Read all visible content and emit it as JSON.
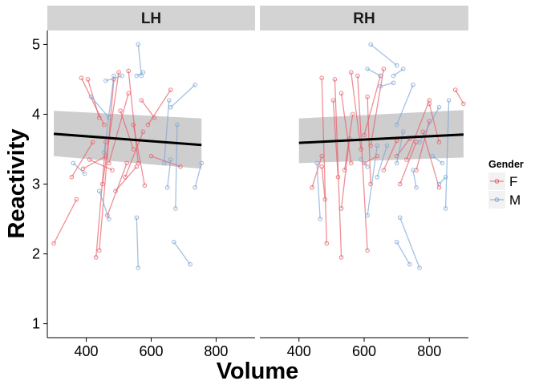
{
  "chart_data": {
    "type": "line",
    "facets": [
      "LH",
      "RH"
    ],
    "xlabel": "Volume",
    "ylabel": "Reactivity",
    "xlim": [
      280,
      920
    ],
    "ylim": [
      0.8,
      5.2
    ],
    "xticks": [
      400,
      600,
      800
    ],
    "yticks": [
      1,
      2,
      3,
      4,
      5
    ],
    "grid": false,
    "legend": {
      "title": "Gender",
      "position": "right",
      "entries": [
        "F",
        "M"
      ]
    },
    "colors": {
      "F": "#e8606b",
      "M": "#7ea6d6",
      "trend": "#000000",
      "ci": "#bdbdbd",
      "strip": "#d3d3d3"
    },
    "trend": [
      {
        "facet": "LH",
        "x": [
          300,
          755
        ],
        "y": [
          3.72,
          3.56
        ],
        "ci_lower": [
          3.4,
          3.22
        ],
        "ci_upper": [
          4.05,
          3.94
        ]
      },
      {
        "facet": "RH",
        "x": [
          400,
          905
        ],
        "y": [
          3.59,
          3.71
        ],
        "ci_lower": [
          3.3,
          3.38
        ],
        "ci_upper": [
          3.94,
          4.06
        ]
      }
    ],
    "segments": [
      {
        "facet": "LH",
        "gender": "F",
        "x1": 300,
        "y1": 2.15,
        "x2": 370,
        "y2": 2.78
      },
      {
        "facet": "LH",
        "gender": "F",
        "x1": 355,
        "y1": 3.1,
        "x2": 420,
        "y2": 3.6
      },
      {
        "facet": "LH",
        "gender": "F",
        "x1": 385,
        "y1": 4.52,
        "x2": 455,
        "y2": 3.85
      },
      {
        "facet": "LH",
        "gender": "F",
        "x1": 390,
        "y1": 3.22,
        "x2": 460,
        "y2": 3.4
      },
      {
        "facet": "LH",
        "gender": "F",
        "x1": 405,
        "y1": 4.5,
        "x2": 440,
        "y2": 3.95
      },
      {
        "facet": "LH",
        "gender": "F",
        "x1": 410,
        "y1": 3.35,
        "x2": 480,
        "y2": 3.2
      },
      {
        "facet": "LH",
        "gender": "F",
        "x1": 430,
        "y1": 1.95,
        "x2": 460,
        "y2": 3.6
      },
      {
        "facet": "LH",
        "gender": "F",
        "x1": 440,
        "y1": 2.05,
        "x2": 485,
        "y2": 4.5
      },
      {
        "facet": "LH",
        "gender": "F",
        "x1": 450,
        "y1": 3.0,
        "x2": 500,
        "y2": 4.6
      },
      {
        "facet": "LH",
        "gender": "F",
        "x1": 465,
        "y1": 2.55,
        "x2": 525,
        "y2": 3.3
      },
      {
        "facet": "LH",
        "gender": "F",
        "x1": 470,
        "y1": 3.3,
        "x2": 530,
        "y2": 4.3
      },
      {
        "facet": "LH",
        "gender": "F",
        "x1": 490,
        "y1": 2.9,
        "x2": 555,
        "y2": 3.25
      },
      {
        "facet": "LH",
        "gender": "F",
        "x1": 505,
        "y1": 4.05,
        "x2": 545,
        "y2": 3.5
      },
      {
        "facet": "LH",
        "gender": "F",
        "x1": 520,
        "y1": 3.1,
        "x2": 575,
        "y2": 3.75
      },
      {
        "facet": "LH",
        "gender": "F",
        "x1": 530,
        "y1": 4.62,
        "x2": 560,
        "y2": 3.3
      },
      {
        "facet": "LH",
        "gender": "F",
        "x1": 545,
        "y1": 3.85,
        "x2": 580,
        "y2": 2.98
      },
      {
        "facet": "LH",
        "gender": "F",
        "x1": 570,
        "y1": 4.2,
        "x2": 610,
        "y2": 3.95
      },
      {
        "facet": "LH",
        "gender": "F",
        "x1": 590,
        "y1": 3.85,
        "x2": 660,
        "y2": 4.35
      },
      {
        "facet": "LH",
        "gender": "F",
        "x1": 600,
        "y1": 3.4,
        "x2": 690,
        "y2": 3.25
      },
      {
        "facet": "LH",
        "gender": "M",
        "x1": 360,
        "y1": 3.3,
        "x2": 395,
        "y2": 3.15
      },
      {
        "facet": "LH",
        "gender": "M",
        "x1": 415,
        "y1": 4.25,
        "x2": 470,
        "y2": 3.95
      },
      {
        "facet": "LH",
        "gender": "M",
        "x1": 455,
        "y1": 3.45,
        "x2": 485,
        "y2": 4.55
      },
      {
        "facet": "LH",
        "gender": "M",
        "x1": 460,
        "y1": 4.48,
        "x2": 510,
        "y2": 4.55
      },
      {
        "facet": "LH",
        "gender": "M",
        "x1": 440,
        "y1": 2.9,
        "x2": 470,
        "y2": 2.5
      },
      {
        "facet": "LH",
        "gender": "M",
        "x1": 555,
        "y1": 4.55,
        "x2": 575,
        "y2": 4.6
      },
      {
        "facet": "LH",
        "gender": "M",
        "x1": 555,
        "y1": 2.52,
        "x2": 560,
        "y2": 1.8
      },
      {
        "facet": "LH",
        "gender": "M",
        "x1": 560,
        "y1": 5.0,
        "x2": 570,
        "y2": 4.55
      },
      {
        "facet": "LH",
        "gender": "M",
        "x1": 640,
        "y1": 3.3,
        "x2": 655,
        "y2": 4.2
      },
      {
        "facet": "LH",
        "gender": "M",
        "x1": 650,
        "y1": 2.95,
        "x2": 660,
        "y2": 3.35
      },
      {
        "facet": "LH",
        "gender": "M",
        "x1": 670,
        "y1": 2.17,
        "x2": 720,
        "y2": 1.85
      },
      {
        "facet": "LH",
        "gender": "M",
        "x1": 675,
        "y1": 2.65,
        "x2": 680,
        "y2": 3.85
      },
      {
        "facet": "LH",
        "gender": "M",
        "x1": 660,
        "y1": 4.1,
        "x2": 735,
        "y2": 4.42
      },
      {
        "facet": "LH",
        "gender": "M",
        "x1": 735,
        "y1": 2.95,
        "x2": 755,
        "y2": 3.3
      },
      {
        "facet": "RH",
        "gender": "F",
        "x1": 440,
        "y1": 2.95,
        "x2": 470,
        "y2": 3.4
      },
      {
        "facet": "RH",
        "gender": "F",
        "x1": 470,
        "y1": 4.52,
        "x2": 485,
        "y2": 2.15
      },
      {
        "facet": "RH",
        "gender": "F",
        "x1": 470,
        "y1": 3.25,
        "x2": 480,
        "y2": 2.78
      },
      {
        "facet": "RH",
        "gender": "F",
        "x1": 505,
        "y1": 4.2,
        "x2": 520,
        "y2": 3.1
      },
      {
        "facet": "RH",
        "gender": "F",
        "x1": 510,
        "y1": 4.5,
        "x2": 530,
        "y2": 1.95
      },
      {
        "facet": "RH",
        "gender": "F",
        "x1": 530,
        "y1": 4.3,
        "x2": 560,
        "y2": 3.3
      },
      {
        "facet": "RH",
        "gender": "F",
        "x1": 530,
        "y1": 2.65,
        "x2": 555,
        "y2": 3.65
      },
      {
        "facet": "RH",
        "gender": "F",
        "x1": 540,
        "y1": 3.2,
        "x2": 565,
        "y2": 4.0
      },
      {
        "facet": "RH",
        "gender": "F",
        "x1": 560,
        "y1": 4.6,
        "x2": 590,
        "y2": 3.5
      },
      {
        "facet": "RH",
        "gender": "F",
        "x1": 580,
        "y1": 4.55,
        "x2": 610,
        "y2": 2.05
      },
      {
        "facet": "RH",
        "gender": "F",
        "x1": 600,
        "y1": 3.7,
        "x2": 650,
        "y2": 4.55
      },
      {
        "facet": "RH",
        "gender": "F",
        "x1": 600,
        "y1": 3.3,
        "x2": 640,
        "y2": 3.4
      },
      {
        "facet": "RH",
        "gender": "F",
        "x1": 610,
        "y1": 4.25,
        "x2": 620,
        "y2": 3.0
      },
      {
        "facet": "RH",
        "gender": "F",
        "x1": 620,
        "y1": 3.55,
        "x2": 660,
        "y2": 4.65
      },
      {
        "facet": "RH",
        "gender": "F",
        "x1": 660,
        "y1": 3.2,
        "x2": 700,
        "y2": 3.62
      },
      {
        "facet": "RH",
        "gender": "F",
        "x1": 700,
        "y1": 3.4,
        "x2": 740,
        "y2": 3.65
      },
      {
        "facet": "RH",
        "gender": "F",
        "x1": 710,
        "y1": 3.0,
        "x2": 760,
        "y2": 3.6
      },
      {
        "facet": "RH",
        "gender": "F",
        "x1": 730,
        "y1": 3.35,
        "x2": 800,
        "y2": 4.2
      },
      {
        "facet": "RH",
        "gender": "F",
        "x1": 760,
        "y1": 3.2,
        "x2": 800,
        "y2": 3.9
      },
      {
        "facet": "RH",
        "gender": "F",
        "x1": 780,
        "y1": 3.75,
        "x2": 830,
        "y2": 2.95
      },
      {
        "facet": "RH",
        "gender": "F",
        "x1": 800,
        "y1": 4.15,
        "x2": 830,
        "y2": 3.6
      },
      {
        "facet": "RH",
        "gender": "F",
        "x1": 880,
        "y1": 4.35,
        "x2": 905,
        "y2": 4.15
      },
      {
        "facet": "RH",
        "gender": "M",
        "x1": 455,
        "y1": 3.3,
        "x2": 465,
        "y2": 2.5
      },
      {
        "facet": "RH",
        "gender": "M",
        "x1": 590,
        "y1": 3.35,
        "x2": 610,
        "y2": 3.25
      },
      {
        "facet": "RH",
        "gender": "M",
        "x1": 610,
        "y1": 4.65,
        "x2": 650,
        "y2": 4.55
      },
      {
        "facet": "RH",
        "gender": "M",
        "x1": 620,
        "y1": 5.0,
        "x2": 700,
        "y2": 4.7
      },
      {
        "facet": "RH",
        "gender": "M",
        "x1": 610,
        "y1": 2.55,
        "x2": 640,
        "y2": 3.55
      },
      {
        "facet": "RH",
        "gender": "M",
        "x1": 640,
        "y1": 3.1,
        "x2": 670,
        "y2": 3.55
      },
      {
        "facet": "RH",
        "gender": "M",
        "x1": 650,
        "y1": 4.4,
        "x2": 690,
        "y2": 4.45
      },
      {
        "facet": "RH",
        "gender": "M",
        "x1": 690,
        "y1": 4.55,
        "x2": 720,
        "y2": 4.65
      },
      {
        "facet": "RH",
        "gender": "M",
        "x1": 700,
        "y1": 3.3,
        "x2": 720,
        "y2": 3.75
      },
      {
        "facet": "RH",
        "gender": "M",
        "x1": 700,
        "y1": 2.17,
        "x2": 740,
        "y2": 1.85
      },
      {
        "facet": "RH",
        "gender": "M",
        "x1": 710,
        "y1": 2.52,
        "x2": 770,
        "y2": 1.8
      },
      {
        "facet": "RH",
        "gender": "M",
        "x1": 700,
        "y1": 3.85,
        "x2": 750,
        "y2": 4.42
      },
      {
        "facet": "RH",
        "gender": "M",
        "x1": 750,
        "y1": 3.2,
        "x2": 760,
        "y2": 2.95
      },
      {
        "facet": "RH",
        "gender": "M",
        "x1": 770,
        "y1": 3.6,
        "x2": 830,
        "y2": 4.1
      },
      {
        "facet": "RH",
        "gender": "M",
        "x1": 810,
        "y1": 3.4,
        "x2": 840,
        "y2": 3.3
      },
      {
        "facet": "RH",
        "gender": "M",
        "x1": 830,
        "y1": 3.0,
        "x2": 850,
        "y2": 3.1
      },
      {
        "facet": "RH",
        "gender": "M",
        "x1": 850,
        "y1": 2.65,
        "x2": 860,
        "y2": 4.2
      }
    ]
  }
}
